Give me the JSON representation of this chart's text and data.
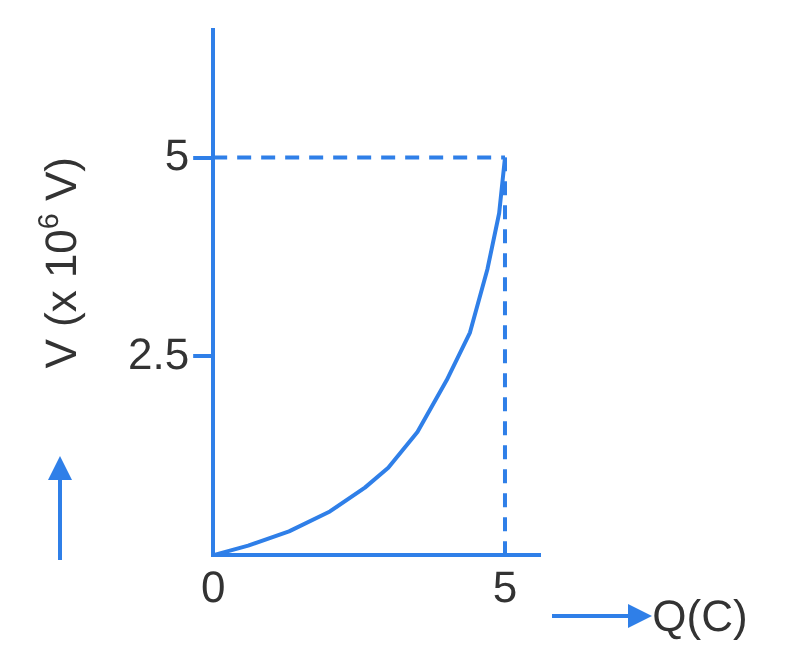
{
  "chart_data": {
    "type": "line",
    "xlabel": "Q(C)",
    "ylabel": "V (x 10$^{6}$ V)",
    "xlim": [
      0,
      5.6
    ],
    "ylim": [
      0,
      6.6
    ],
    "xticks": [
      0,
      5
    ],
    "yticks": [
      2.5,
      5
    ],
    "grid": false,
    "legend": false,
    "marker": "none",
    "series": [
      {
        "color": "#2f7fe8",
        "line_style": "solid",
        "x": [
          0,
          0.6,
          1.3,
          2,
          2.6,
          3,
          3.5,
          4,
          4.4,
          4.7,
          4.9,
          5
        ],
        "values": [
          0,
          0.12,
          0.3,
          0.55,
          0.85,
          1.1,
          1.55,
          2.2,
          2.8,
          3.6,
          4.3,
          5
        ]
      },
      {
        "color": "#2f7fe8",
        "line_style": "dashed",
        "x": [
          0,
          5
        ],
        "values": [
          5,
          5
        ]
      },
      {
        "color": "#2f7fe8",
        "line_style": "dashed",
        "x": [
          5,
          5
        ],
        "values": [
          0,
          5
        ]
      }
    ]
  }
}
